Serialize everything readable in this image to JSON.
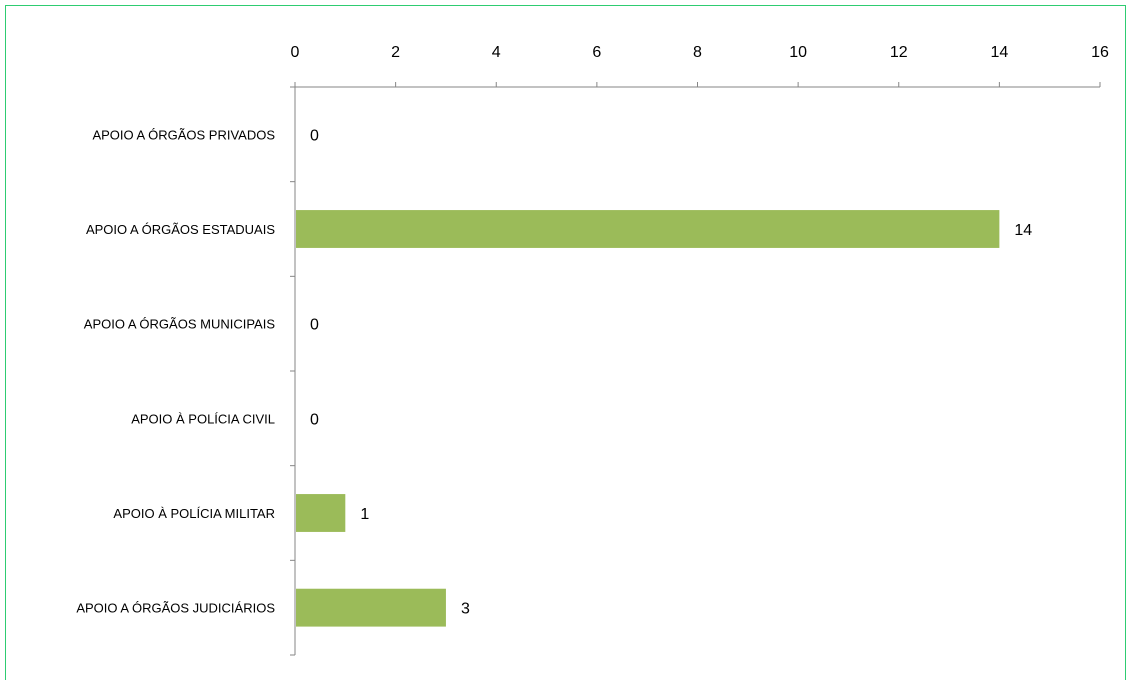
{
  "chart_data": {
    "type": "bar",
    "orientation": "horizontal",
    "categories": [
      "APOIO A ÓRGÃOS PRIVADOS",
      "APOIO A ÓRGÃOS ESTADUAIS",
      "APOIO A ÓRGÃOS MUNICIPAIS",
      "APOIO À POLÍCIA CIVIL",
      "APOIO À POLÍCIA MILITAR",
      "APOIO A ÓRGÃOS JUDICIÁRIOS"
    ],
    "values": [
      0,
      14,
      0,
      0,
      1,
      3
    ],
    "data_labels": [
      "0",
      "14",
      "0",
      "0",
      "1",
      "3"
    ],
    "xlim": [
      0,
      16
    ],
    "x_ticks": [
      0,
      2,
      4,
      6,
      8,
      10,
      12,
      14,
      16
    ],
    "x_tick_labels": [
      "0",
      "2",
      "4",
      "6",
      "8",
      "10",
      "12",
      "14",
      "16"
    ],
    "x_axis_position": "top",
    "title": "",
    "xlabel": "",
    "ylabel": "",
    "grid": false,
    "legend": "none",
    "bar_color": "#9bbb59",
    "frame_color": "#2ecc71"
  }
}
